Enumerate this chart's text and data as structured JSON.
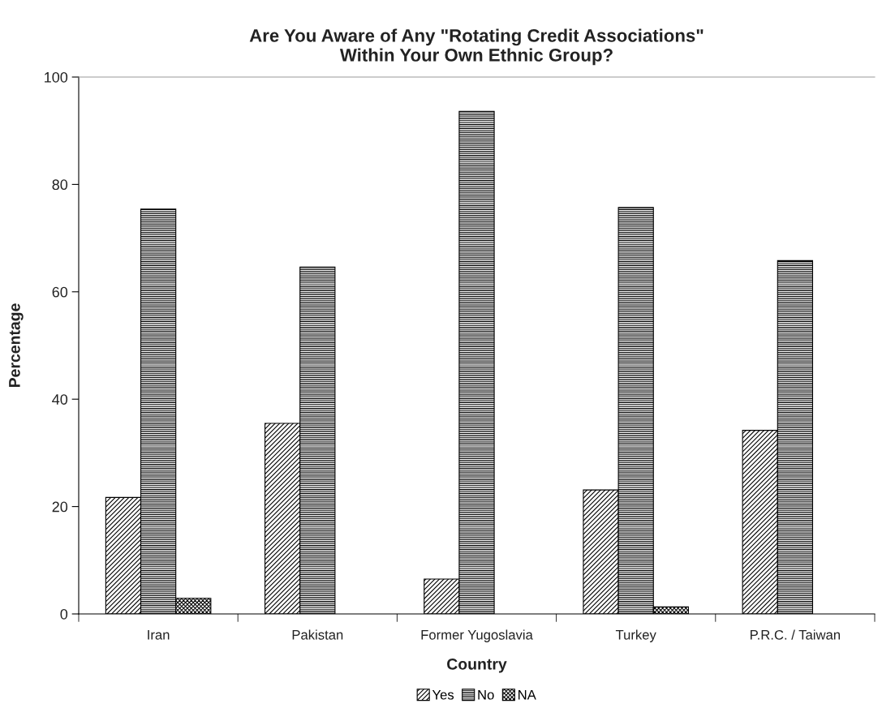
{
  "chart_data": {
    "type": "bar",
    "title": "Are You Aware of Any \"Rotating Credit Associations\"\nWithin Your Own Ethnic Group?",
    "xlabel": "Country",
    "ylabel": "Percentage",
    "categories": [
      "Iran",
      "Pakistan",
      "Former Yugoslavia",
      "Turkey",
      "P.R.C. / Taiwan"
    ],
    "series": [
      {
        "name": "Yes",
        "color": "#000000",
        "values": [
          21.7,
          35.5,
          6.5,
          23.1,
          34.2
        ]
      },
      {
        "name": "No",
        "color": "#000000",
        "values": [
          75.4,
          64.6,
          93.6,
          75.7,
          65.8
        ]
      },
      {
        "name": "NA",
        "color": "#000000",
        "values": [
          2.9,
          null,
          null,
          1.3,
          null
        ]
      }
    ],
    "ylim": [
      0,
      100
    ],
    "yticks": [
      0,
      20,
      40,
      60,
      80,
      100
    ],
    "grid": false,
    "legend": "bottom"
  }
}
